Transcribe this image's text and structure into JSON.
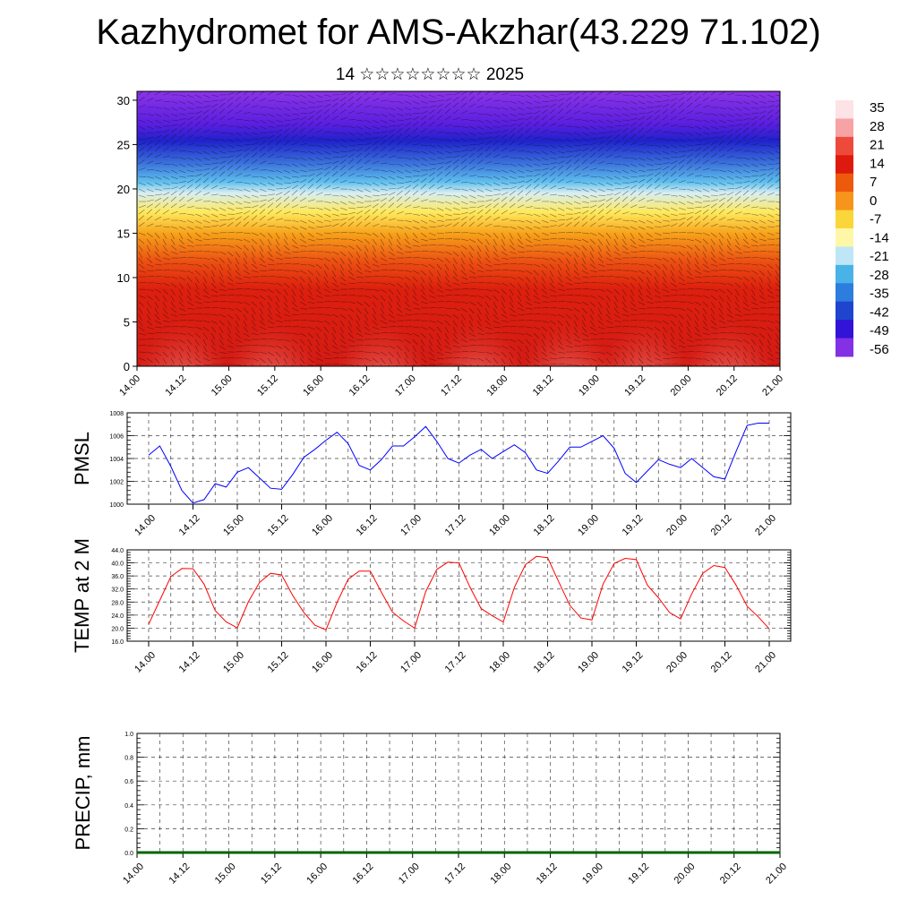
{
  "title": "Kazhydromet for AMS-Akzhar(43.229 71.102)",
  "subtitle": "14 ☆☆☆☆☆☆☆☆ 2025",
  "colorbar": {
    "labels": [
      "35",
      "28",
      "21",
      "14",
      "7",
      "0",
      "-7",
      "-14",
      "-21",
      "-28",
      "-35",
      "-42",
      "-49",
      "-56"
    ],
    "colors": [
      "#fde2e6",
      "#f7a3a6",
      "#ee4a3c",
      "#dd1a0d",
      "#ee5a0c",
      "#f7941c",
      "#fbd63a",
      "#fff7a8",
      "#bfe6f6",
      "#49b3e8",
      "#2c7ddd",
      "#1f45cf",
      "#3213d8",
      "#8430e4"
    ]
  },
  "chart_data": [
    {
      "type": "heatmap",
      "description_key": "temperature-wind cross section",
      "y_ticks": [
        "0",
        "5",
        "10",
        "15",
        "20",
        "25",
        "30"
      ],
      "ylim": [
        0,
        31
      ],
      "x_ticks": [
        "14.00",
        "14.12",
        "15.00",
        "15.12",
        "16.00",
        "16.12",
        "17.00",
        "17.12",
        "18.00",
        "18.12",
        "19.00",
        "19.12",
        "20.00",
        "20.12",
        "21.00"
      ]
    },
    {
      "type": "line",
      "ylabel": "PMSL",
      "ylim": [
        1000,
        1008
      ],
      "y_ticks": [
        "1000",
        "1002",
        "1004",
        "1006",
        "1008"
      ],
      "x_ticks": [
        "14.00",
        "14.12",
        "15.00",
        "15.12",
        "16.00",
        "16.12",
        "17.00",
        "17.12",
        "18.00",
        "18.12",
        "19.00",
        "19.12",
        "20.00",
        "20.12",
        "21.00"
      ],
      "color": "#0000ff",
      "x": [
        0,
        3,
        6,
        9,
        12,
        15,
        18,
        21,
        24,
        27,
        30,
        33,
        36,
        39,
        42,
        45,
        48,
        51,
        54,
        57,
        60,
        63,
        66,
        69,
        72,
        75,
        78,
        81,
        84,
        87,
        90,
        93,
        96,
        99,
        102,
        105,
        108,
        111,
        114,
        117,
        120,
        123,
        126,
        129,
        132,
        135,
        138,
        141,
        144,
        147,
        150,
        153,
        156,
        159,
        162,
        165,
        168
      ],
      "values": [
        1004.3,
        1005.1,
        1003.3,
        1001.2,
        1000.1,
        1000.4,
        1001.8,
        1001.5,
        1002.8,
        1003.2,
        1002.3,
        1001.4,
        1001.3,
        1002.6,
        1004.1,
        1004.8,
        1005.6,
        1006.3,
        1005.3,
        1003.4,
        1003.0,
        1003.9,
        1005.1,
        1005.1,
        1005.9,
        1006.8,
        1005.5,
        1004.0,
        1003.6,
        1004.3,
        1004.8,
        1004.0,
        1004.6,
        1005.2,
        1004.5,
        1003.0,
        1002.7,
        1003.8,
        1005.0,
        1005.0,
        1005.5,
        1006.0,
        1004.9,
        1002.7,
        1001.9,
        1002.9,
        1003.9,
        1003.5,
        1003.2,
        1004.0,
        1003.2,
        1002.4,
        1002.2,
        1004.6,
        1006.9,
        1007.1,
        1007.1
      ]
    },
    {
      "type": "line",
      "ylabel": "TEMP at 2 M",
      "ylim": [
        16,
        44
      ],
      "y_ticks": [
        "16.0",
        "20.0",
        "24.0",
        "28.0",
        "32.0",
        "36.0",
        "40.0",
        "44.0"
      ],
      "x_ticks": [
        "14.00",
        "14.12",
        "15.00",
        "15.12",
        "16.00",
        "16.12",
        "17.00",
        "17.12",
        "18.00",
        "18.12",
        "19.00",
        "19.12",
        "20.00",
        "20.12",
        "21.00"
      ],
      "color": "#ff0000",
      "x": [
        0,
        3,
        6,
        9,
        12,
        15,
        18,
        21,
        24,
        27,
        30,
        33,
        36,
        39,
        42,
        45,
        48,
        51,
        54,
        57,
        60,
        63,
        66,
        69,
        72,
        75,
        78,
        81,
        84,
        87,
        90,
        93,
        96,
        99,
        102,
        105,
        108,
        111,
        114,
        117,
        120,
        123,
        126,
        129,
        132,
        135,
        138,
        141,
        144,
        147,
        150,
        153,
        156,
        159,
        162,
        165,
        168
      ],
      "values": [
        21.2,
        28.5,
        35.8,
        38.3,
        38.2,
        33.5,
        25.4,
        21.9,
        20.1,
        28.1,
        34.0,
        36.8,
        36.3,
        30.0,
        24.8,
        20.9,
        19.5,
        27.9,
        35.0,
        37.5,
        37.5,
        31.0,
        24.9,
        22.2,
        20.0,
        31.2,
        38.0,
        40.2,
        40.0,
        32.5,
        26.0,
        23.8,
        21.9,
        32.5,
        39.5,
        42.0,
        41.6,
        34.2,
        27.0,
        23.1,
        22.5,
        33.5,
        39.8,
        41.4,
        41.0,
        33.2,
        29.3,
        24.8,
        22.8,
        30.5,
        36.8,
        39.2,
        38.6,
        33.2,
        26.7,
        23.5,
        19.8
      ]
    },
    {
      "type": "line",
      "ylabel": "PRECIP, mm",
      "ylim": [
        0,
        1
      ],
      "y_ticks": [
        "0.0",
        "0.2",
        "0.4",
        "0.6",
        "0.8",
        "1.0"
      ],
      "x_ticks": [
        "14.00",
        "14.12",
        "15.00",
        "15.12",
        "16.00",
        "16.12",
        "17.00",
        "17.12",
        "18.00",
        "18.12",
        "19.00",
        "19.12",
        "20.00",
        "20.12",
        "21.00"
      ],
      "color": "#006400",
      "x": [
        0,
        168
      ],
      "values": [
        0,
        0
      ]
    }
  ]
}
